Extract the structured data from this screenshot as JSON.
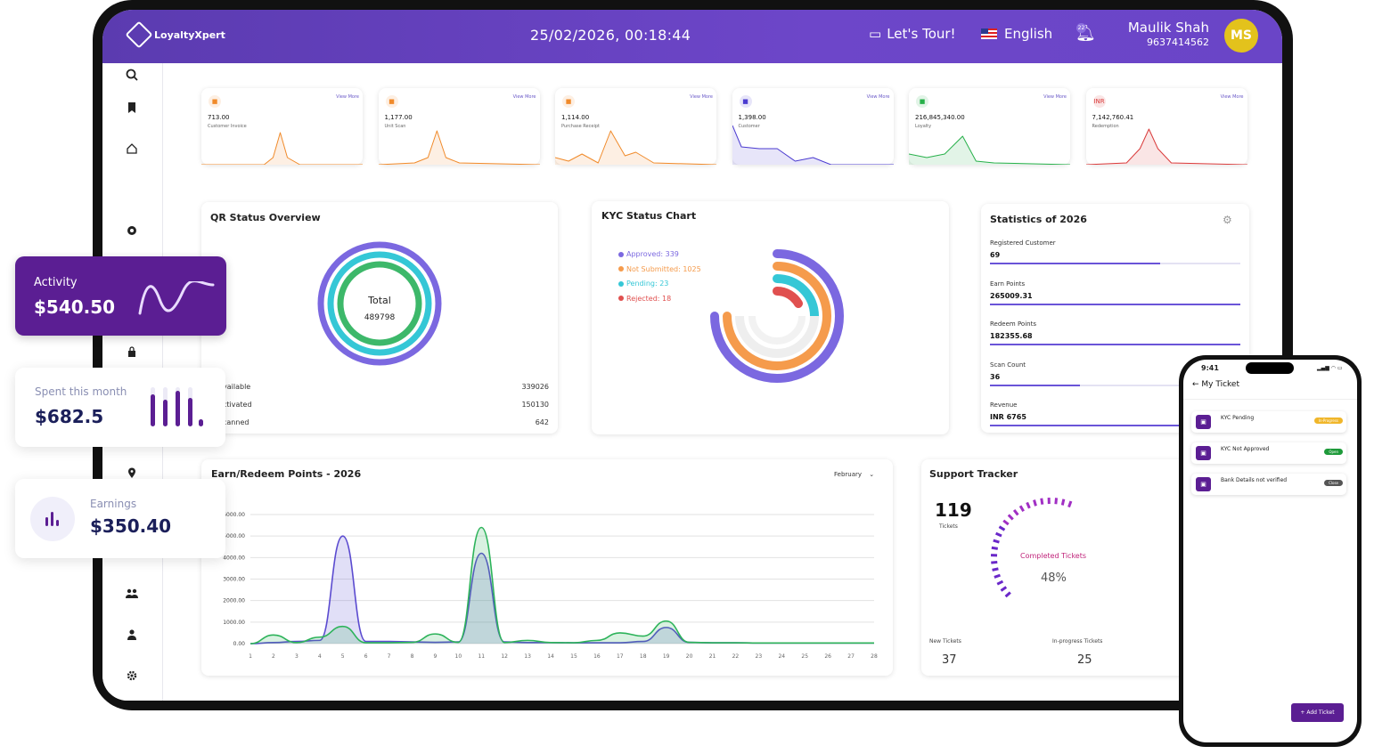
{
  "header": {
    "logo": "LoyaltyXpert",
    "datetime": "25/02/2026, 00:18:44",
    "tour": "Let's Tour!",
    "language": "English",
    "notification_count": "22",
    "user_name": "Maulik Shah",
    "user_phone": "9637414562",
    "avatar_initials": "MS"
  },
  "sidebar": {
    "icons": [
      "search-icon",
      "bookmark-icon",
      "home-icon",
      "dashboard-icon",
      "lock-icon",
      "location-icon",
      "tag-icon",
      "users-icon",
      "user-icon",
      "gear-icon"
    ]
  },
  "stats_cards": [
    {
      "value": "713.00",
      "label": "Customer Invoice",
      "view_more": "View More",
      "icon": "document-icon",
      "color": "#f08a2a"
    },
    {
      "value": "1,177.00",
      "label": "Unit Scan",
      "view_more": "View More",
      "icon": "check-icon",
      "color": "#f08a2a"
    },
    {
      "value": "1,114.00",
      "label": "Purchase Receipt",
      "view_more": "View More",
      "icon": "receipt-icon",
      "color": "#f08a2a"
    },
    {
      "value": "1,398.00",
      "label": "Customer",
      "view_more": "View More",
      "icon": "people-icon",
      "color": "#4b3bd0"
    },
    {
      "value": "216,845,340.00",
      "label": "Loyalty",
      "view_more": "View More",
      "icon": "money-icon",
      "color": "#27b04a"
    },
    {
      "value": "7,142,760.41",
      "label": "Redemption",
      "view_more": "View More",
      "icon_text": "INR",
      "color": "#d93a3a"
    }
  ],
  "qr_status": {
    "title": "QR Status Overview",
    "center_label": "Total",
    "center_value": "489798",
    "rows": [
      {
        "label": "vailable",
        "value": "339026"
      },
      {
        "label": "ctivated",
        "value": "150130"
      },
      {
        "label": "canned",
        "value": "642"
      }
    ]
  },
  "kyc_status": {
    "title": "KYC Status Chart",
    "legend": [
      {
        "label": "Approved: 339",
        "color": "#7b68e0"
      },
      {
        "label": "Not Submitted: 1025",
        "color": "#f59b4c"
      },
      {
        "label": "Pending: 23",
        "color": "#35c7d6"
      },
      {
        "label": "Rejected: 18",
        "color": "#e0504f"
      }
    ]
  },
  "statistics": {
    "title": "Statistics of 2026",
    "items": [
      {
        "label": "Registered Customer",
        "value": "69",
        "fill": 0.68
      },
      {
        "label": "Earn Points",
        "value": "265009.31",
        "fill": 1.0
      },
      {
        "label": "Redeem Points",
        "value": "182355.68",
        "fill": 1.0
      },
      {
        "label": "Scan Count",
        "value": "36",
        "fill": 0.36
      },
      {
        "label": "Revenue",
        "value": "INR 6765",
        "fill": 1.0
      }
    ]
  },
  "earn_redeem": {
    "title": "Earn/Redeem Points - 2026",
    "month": "February"
  },
  "support": {
    "title": "Support Tracker",
    "total": "119",
    "total_label": "Tickets",
    "completed_label": "Completed Tickets",
    "completed_pct": "48%",
    "new_label": "New Tickets",
    "new_value": "37",
    "inprogress_label": "In-progress Tickets",
    "inprogress_value": "25"
  },
  "floating": {
    "activity_label": "Activity",
    "activity_value": "$540.50",
    "spent_label": "Spent this month",
    "spent_value": "$682.5",
    "earnings_label": "Earnings",
    "earnings_value": "$350.40"
  },
  "phone": {
    "time": "9:41",
    "title": "My Ticket",
    "tickets": [
      {
        "title": "KYC Pending",
        "status": "In-Progress",
        "color": "#f0b62a"
      },
      {
        "title": "KYC Not Approved",
        "status": "Open",
        "color": "#1e9a3a"
      },
      {
        "title": "Bank Details not verified",
        "status": "Close",
        "color": "#555555"
      }
    ],
    "add_button": "+ Add Ticket"
  },
  "chart_data": {
    "type": "area",
    "title": "Earn/Redeem Points - 2026",
    "x": [
      1,
      2,
      3,
      4,
      5,
      6,
      7,
      8,
      9,
      10,
      11,
      12,
      13,
      14,
      15,
      16,
      17,
      18,
      19,
      20,
      21,
      22,
      23,
      24,
      25,
      26,
      27,
      28
    ],
    "yticks": [
      "0.00",
      "1000.00",
      "2000.00",
      "3000.00",
      "4000.00",
      "5000.00",
      "6000.00"
    ],
    "ylim": [
      0,
      6000
    ],
    "series": [
      {
        "color": "#5b4bd0",
        "values": [
          0,
          50,
          100,
          150,
          5000,
          100,
          100,
          80,
          60,
          80,
          4200,
          80,
          50,
          50,
          40,
          40,
          40,
          100,
          750,
          60,
          40,
          40,
          30,
          30,
          30,
          30,
          30,
          30
        ]
      },
      {
        "color": "#2db35a",
        "values": [
          0,
          400,
          50,
          300,
          800,
          40,
          40,
          60,
          450,
          60,
          5400,
          50,
          150,
          50,
          40,
          150,
          500,
          350,
          1050,
          60,
          40,
          40,
          30,
          30,
          30,
          30,
          30,
          30
        ]
      }
    ]
  }
}
